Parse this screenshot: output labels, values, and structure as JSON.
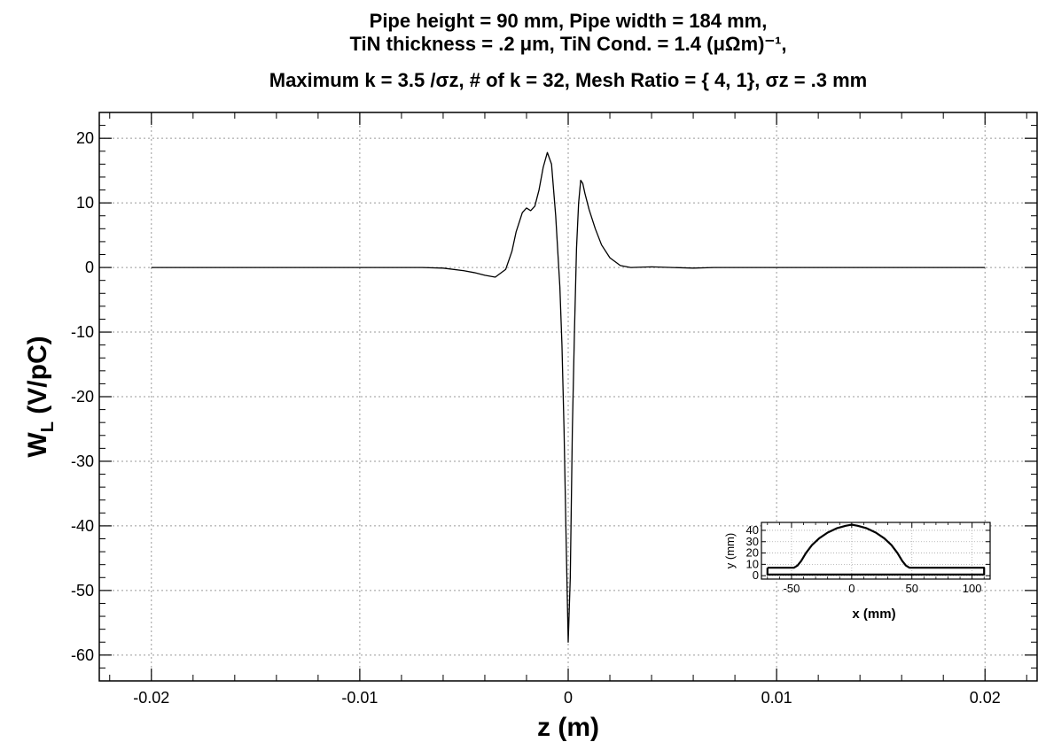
{
  "chart_data": {
    "type": "line",
    "title_lines": [
      "Pipe height =   90 mm,  Pipe width =  184 mm,",
      "TiN thickness =     .2 μm,  TiN Cond. =    1.4 (μΩm)⁻¹,",
      "Maximum k =    3.5 /σz,  # of k =   32,  Mesh Ratio = {   4,   1},  σz =     .3 mm"
    ],
    "xlabel": "z (m)",
    "ylabel": "WL (V/pC)",
    "xlim": [
      -0.0225,
      0.0225
    ],
    "ylim": [
      -64,
      24
    ],
    "xticks": [
      -0.02,
      -0.01,
      0,
      0.01,
      0.02
    ],
    "xtick_labels": [
      "-0.02",
      "-0.01",
      "0",
      "0.01",
      "0.02"
    ],
    "yticks": [
      20,
      10,
      0,
      -10,
      -20,
      -30,
      -40,
      -50,
      -60
    ],
    "ytick_labels": [
      "20",
      "10",
      "0",
      "-10",
      "-20",
      "-30",
      "-40",
      "-50",
      "-60"
    ],
    "grid": true,
    "series": [
      {
        "x": [
          -0.02,
          -0.007,
          -0.006,
          -0.005,
          -0.0045,
          -0.004,
          -0.0035,
          -0.003,
          -0.0027,
          -0.0025,
          -0.0022,
          -0.002,
          -0.0018,
          -0.0016,
          -0.0014,
          -0.0012,
          -0.001,
          -0.0008,
          -0.0006,
          -0.0004,
          -0.0003,
          -0.0002,
          -0.0001,
          0.0,
          0.0001,
          0.0002,
          0.0003,
          0.0004,
          0.0005,
          0.0006,
          0.0007,
          0.0008,
          0.001,
          0.0013,
          0.0016,
          0.002,
          0.0025,
          0.003,
          0.004,
          0.005,
          0.006,
          0.007,
          0.02
        ],
        "y": [
          0,
          0,
          -0.1,
          -0.5,
          -0.8,
          -1.2,
          -1.5,
          -0.3,
          2.5,
          5.5,
          8.5,
          9.2,
          8.8,
          9.5,
          12,
          15.5,
          17.8,
          16,
          8,
          -3,
          -12,
          -25,
          -42,
          -58,
          -48,
          -25,
          -10,
          3,
          10,
          13.5,
          13,
          11.5,
          9,
          6,
          3.5,
          1.5,
          0.3,
          0,
          0.1,
          0,
          -0.1,
          0,
          0
        ]
      }
    ],
    "inset": {
      "type": "line",
      "xlabel": "x (mm)",
      "ylabel": "y (mm)",
      "xlim": [
        -75,
        115
      ],
      "ylim": [
        -3,
        47
      ],
      "xticks": [
        -50,
        0,
        50,
        100
      ],
      "xtick_labels": [
        "-50",
        "0",
        "50",
        "100"
      ],
      "yticks": [
        0,
        10,
        20,
        30,
        40
      ],
      "ytick_labels": [
        "0",
        "10",
        "20",
        "30",
        "40"
      ],
      "series": [
        {
          "x": [
            -70,
            -48,
            -45,
            -42,
            -38,
            -33,
            -27,
            -20,
            -12,
            -5,
            0,
            5,
            12,
            20,
            27,
            33,
            38,
            42,
            45,
            48,
            110,
            110,
            -70,
            -70
          ],
          "y": [
            7,
            7,
            9,
            13,
            20,
            27,
            33,
            38,
            42,
            44,
            45,
            44,
            42,
            38,
            33,
            27,
            20,
            13,
            9,
            7,
            7,
            1,
            1,
            7
          ]
        }
      ]
    }
  }
}
